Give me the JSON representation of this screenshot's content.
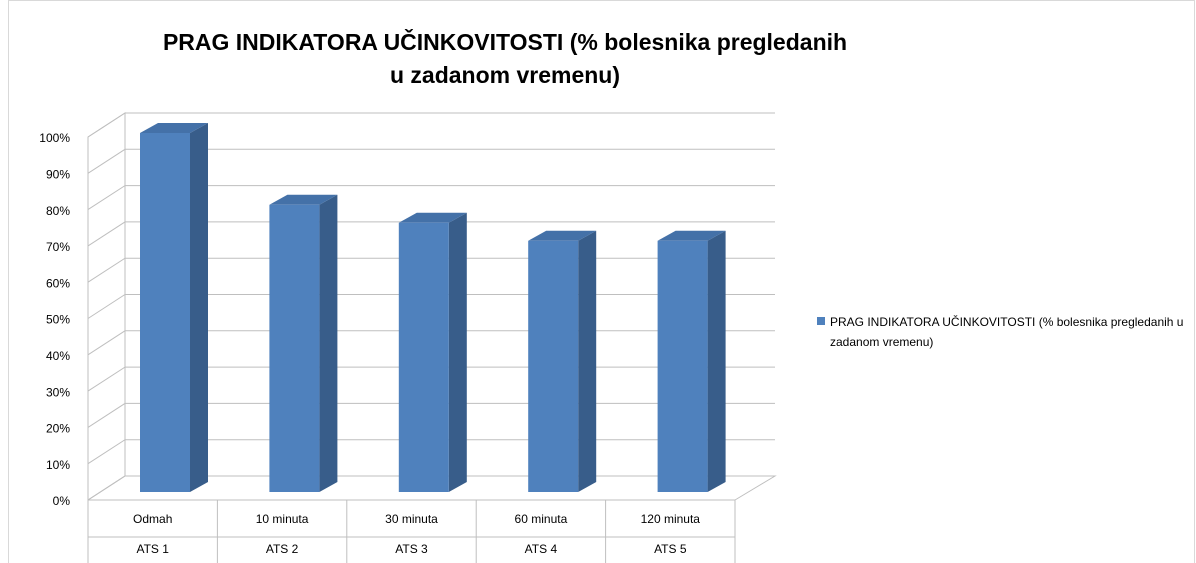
{
  "chart_data": {
    "type": "bar3d",
    "title": "PRAG INDIKATORA UČINKOVITOSTI (% bolesnika pregledanih u zadanom vremenu)",
    "categories": [
      "Odmah",
      "10 minuta",
      "30 minuta",
      "60 minuta",
      "120 minuta"
    ],
    "subcategories": [
      "ATS 1",
      "ATS 2",
      "ATS 3",
      "ATS 4",
      "ATS 5"
    ],
    "series": [
      {
        "name": "PRAG INDIKATORA UČINKOVITOSTI (% bolesnika pregledanih u zadanom vremenu)",
        "color": "#4f81bd",
        "values": [
          100,
          80,
          75,
          70,
          70
        ]
      }
    ],
    "ylim": [
      0,
      100
    ],
    "yticks": [
      {
        "value": 0,
        "label": "0%"
      },
      {
        "value": 10,
        "label": "10%"
      },
      {
        "value": 20,
        "label": "20%"
      },
      {
        "value": 30,
        "label": "30%"
      },
      {
        "value": 40,
        "label": "40%"
      },
      {
        "value": 50,
        "label": "50%"
      },
      {
        "value": 60,
        "label": "60%"
      },
      {
        "value": 70,
        "label": "70%"
      },
      {
        "value": 80,
        "label": "80%"
      },
      {
        "value": 90,
        "label": "90%"
      },
      {
        "value": 100,
        "label": "100%"
      }
    ],
    "grid": true,
    "legend": "right"
  }
}
